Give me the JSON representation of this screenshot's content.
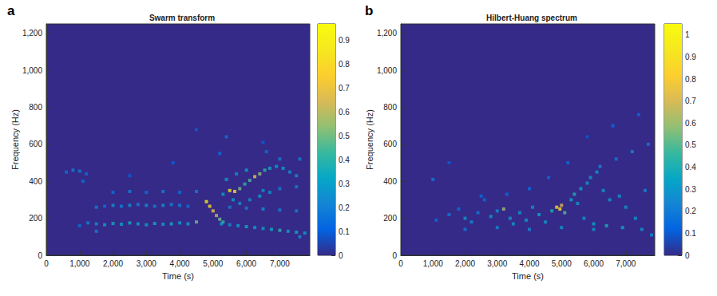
{
  "chart_data": [
    {
      "type": "heatmap",
      "label": "a",
      "title": "Swarm transform",
      "x_label": "Time (s)",
      "y_label": "Frequency (Hz)",
      "xlim": [
        0,
        7900
      ],
      "xticks": [
        0,
        1000,
        2000,
        3000,
        4000,
        5000,
        6000,
        7000
      ],
      "ylim": [
        0,
        1250
      ],
      "yticks": [
        0,
        200,
        400,
        600,
        800,
        1000,
        1200
      ],
      "cells": [
        [
          1000,
          160,
          0.15
        ],
        [
          1250,
          175,
          0.2
        ],
        [
          1500,
          170,
          0.25
        ],
        [
          1750,
          165,
          0.3
        ],
        [
          2000,
          172,
          0.35
        ],
        [
          2250,
          168,
          0.3
        ],
        [
          2500,
          175,
          0.35
        ],
        [
          2750,
          170,
          0.3
        ],
        [
          3000,
          165,
          0.3
        ],
        [
          3250,
          172,
          0.35
        ],
        [
          3500,
          168,
          0.3
        ],
        [
          3750,
          170,
          0.35
        ],
        [
          4000,
          175,
          0.3
        ],
        [
          4250,
          170,
          0.3
        ],
        [
          4500,
          180,
          0.5
        ],
        [
          5250,
          170,
          0.3
        ],
        [
          5500,
          165,
          0.25
        ],
        [
          5750,
          160,
          0.3
        ],
        [
          6000,
          155,
          0.35
        ],
        [
          6250,
          150,
          0.3
        ],
        [
          6500,
          145,
          0.3
        ],
        [
          6750,
          140,
          0.35
        ],
        [
          7000,
          135,
          0.4
        ],
        [
          7250,
          130,
          0.3
        ],
        [
          7500,
          125,
          0.35
        ],
        [
          7750,
          120,
          0.3
        ],
        [
          1500,
          260,
          0.2
        ],
        [
          1750,
          265,
          0.15
        ],
        [
          2000,
          270,
          0.25
        ],
        [
          2250,
          265,
          0.2
        ],
        [
          2500,
          270,
          0.25
        ],
        [
          2750,
          275,
          0.2
        ],
        [
          3000,
          270,
          0.25
        ],
        [
          3250,
          265,
          0.2
        ],
        [
          3500,
          270,
          0.25
        ],
        [
          3750,
          275,
          0.2
        ],
        [
          4000,
          270,
          0.2
        ],
        [
          4250,
          265,
          0.15
        ],
        [
          5500,
          260,
          0.2
        ],
        [
          6000,
          255,
          0.2
        ],
        [
          6500,
          250,
          0.25
        ],
        [
          7000,
          245,
          0.2
        ],
        [
          7500,
          240,
          0.2
        ],
        [
          2000,
          340,
          0.15
        ],
        [
          2500,
          345,
          0.2
        ],
        [
          3000,
          340,
          0.15
        ],
        [
          3500,
          345,
          0.2
        ],
        [
          4000,
          340,
          0.15
        ],
        [
          4500,
          345,
          0.2
        ],
        [
          6500,
          350,
          0.25
        ],
        [
          7000,
          360,
          0.2
        ],
        [
          7500,
          370,
          0.2
        ],
        [
          600,
          450,
          0.15
        ],
        [
          800,
          460,
          0.2
        ],
        [
          1000,
          455,
          0.2
        ],
        [
          1200,
          440,
          0.15
        ],
        [
          1100,
          400,
          0.15
        ],
        [
          4800,
          290,
          0.9
        ],
        [
          4900,
          265,
          0.8
        ],
        [
          5000,
          240,
          0.7
        ],
        [
          5100,
          215,
          0.6
        ],
        [
          5200,
          195,
          0.5
        ],
        [
          5300,
          180,
          0.4
        ],
        [
          5300,
          330,
          0.3
        ],
        [
          5500,
          350,
          0.85
        ],
        [
          5650,
          345,
          0.8
        ],
        [
          5800,
          360,
          0.5
        ],
        [
          5950,
          385,
          0.4
        ],
        [
          6100,
          405,
          0.45
        ],
        [
          6250,
          425,
          0.7
        ],
        [
          6400,
          440,
          0.55
        ],
        [
          6550,
          460,
          0.4
        ],
        [
          6700,
          470,
          0.35
        ],
        [
          6900,
          480,
          0.3
        ],
        [
          7100,
          470,
          0.3
        ],
        [
          7300,
          450,
          0.25
        ],
        [
          7500,
          430,
          0.25
        ],
        [
          5400,
          410,
          0.3
        ],
        [
          5700,
          440,
          0.25
        ],
        [
          6000,
          460,
          0.3
        ],
        [
          5600,
          300,
          0.3
        ],
        [
          5800,
          280,
          0.25
        ],
        [
          6100,
          300,
          0.25
        ],
        [
          6400,
          320,
          0.3
        ],
        [
          6700,
          340,
          0.25
        ],
        [
          5200,
          550,
          0.15
        ],
        [
          5400,
          640,
          0.15
        ],
        [
          6600,
          560,
          0.15
        ],
        [
          7000,
          520,
          0.2
        ],
        [
          7600,
          520,
          0.2
        ],
        [
          3800,
          500,
          0.1
        ],
        [
          2500,
          430,
          0.1
        ],
        [
          4500,
          680,
          0.1
        ],
        [
          6500,
          610,
          0.1
        ],
        [
          1500,
          130,
          0.2
        ],
        [
          7600,
          100,
          0.25
        ]
      ],
      "colorbar": {
        "range": [
          0,
          0.97
        ],
        "ticks": [
          0,
          0.1,
          0.2,
          0.3,
          0.4,
          0.5,
          0.6,
          0.7,
          0.8,
          0.9
        ]
      }
    },
    {
      "type": "heatmap",
      "label": "b",
      "title": "Hilbert-Huang spectrum",
      "x_label": "Time (s)",
      "y_label": "Frequency (Hz)",
      "xlim": [
        0,
        7900
      ],
      "xticks": [
        0,
        1000,
        2000,
        3000,
        4000,
        5000,
        6000,
        7000
      ],
      "ylim": [
        0,
        1250
      ],
      "yticks": [
        0,
        200,
        400,
        600,
        800,
        1000,
        1200
      ],
      "cells": [
        [
          1000,
          410,
          0.2
        ],
        [
          1100,
          190,
          0.15
        ],
        [
          1500,
          220,
          0.2
        ],
        [
          1800,
          250,
          0.15
        ],
        [
          2000,
          200,
          0.3
        ],
        [
          2200,
          180,
          0.25
        ],
        [
          2400,
          230,
          0.2
        ],
        [
          2600,
          300,
          0.15
        ],
        [
          2800,
          210,
          0.3
        ],
        [
          3000,
          240,
          0.25
        ],
        [
          3200,
          250,
          0.6
        ],
        [
          3400,
          200,
          0.3
        ],
        [
          3500,
          170,
          0.3
        ],
        [
          3700,
          230,
          0.3
        ],
        [
          3900,
          190,
          0.3
        ],
        [
          4100,
          260,
          0.3
        ],
        [
          4300,
          220,
          0.35
        ],
        [
          4500,
          180,
          0.3
        ],
        [
          4700,
          240,
          0.4
        ],
        [
          4850,
          260,
          0.85
        ],
        [
          4950,
          250,
          0.9
        ],
        [
          5000,
          270,
          0.7
        ],
        [
          5100,
          230,
          0.5
        ],
        [
          5300,
          300,
          0.35
        ],
        [
          5400,
          330,
          0.4
        ],
        [
          5500,
          280,
          0.3
        ],
        [
          5600,
          360,
          0.35
        ],
        [
          5700,
          200,
          0.3
        ],
        [
          5800,
          390,
          0.3
        ],
        [
          5900,
          420,
          0.3
        ],
        [
          6000,
          170,
          0.35
        ],
        [
          6100,
          450,
          0.3
        ],
        [
          6200,
          480,
          0.25
        ],
        [
          6300,
          350,
          0.3
        ],
        [
          6400,
          160,
          0.4
        ],
        [
          6500,
          300,
          0.3
        ],
        [
          6700,
          520,
          0.2
        ],
        [
          6800,
          320,
          0.3
        ],
        [
          6900,
          150,
          0.35
        ],
        [
          7000,
          260,
          0.3
        ],
        [
          7200,
          560,
          0.25
        ],
        [
          7300,
          200,
          0.3
        ],
        [
          7500,
          140,
          0.3
        ],
        [
          7600,
          350,
          0.25
        ],
        [
          7700,
          600,
          0.2
        ],
        [
          7800,
          110,
          0.25
        ],
        [
          2500,
          320,
          0.15
        ],
        [
          3300,
          330,
          0.15
        ],
        [
          4000,
          360,
          0.15
        ],
        [
          4600,
          420,
          0.15
        ],
        [
          5200,
          500,
          0.15
        ],
        [
          1500,
          500,
          0.1
        ],
        [
          6600,
          700,
          0.15
        ],
        [
          7400,
          760,
          0.15
        ],
        [
          5800,
          640,
          0.1
        ],
        [
          2000,
          140,
          0.2
        ],
        [
          3000,
          150,
          0.25
        ],
        [
          4000,
          140,
          0.25
        ],
        [
          5000,
          150,
          0.3
        ],
        [
          6000,
          140,
          0.3
        ]
      ],
      "colorbar": {
        "range": [
          0,
          1.05
        ],
        "ticks": [
          0,
          0.1,
          0.2,
          0.3,
          0.4,
          0.5,
          0.6,
          0.7,
          0.8,
          0.9,
          1
        ]
      }
    }
  ]
}
